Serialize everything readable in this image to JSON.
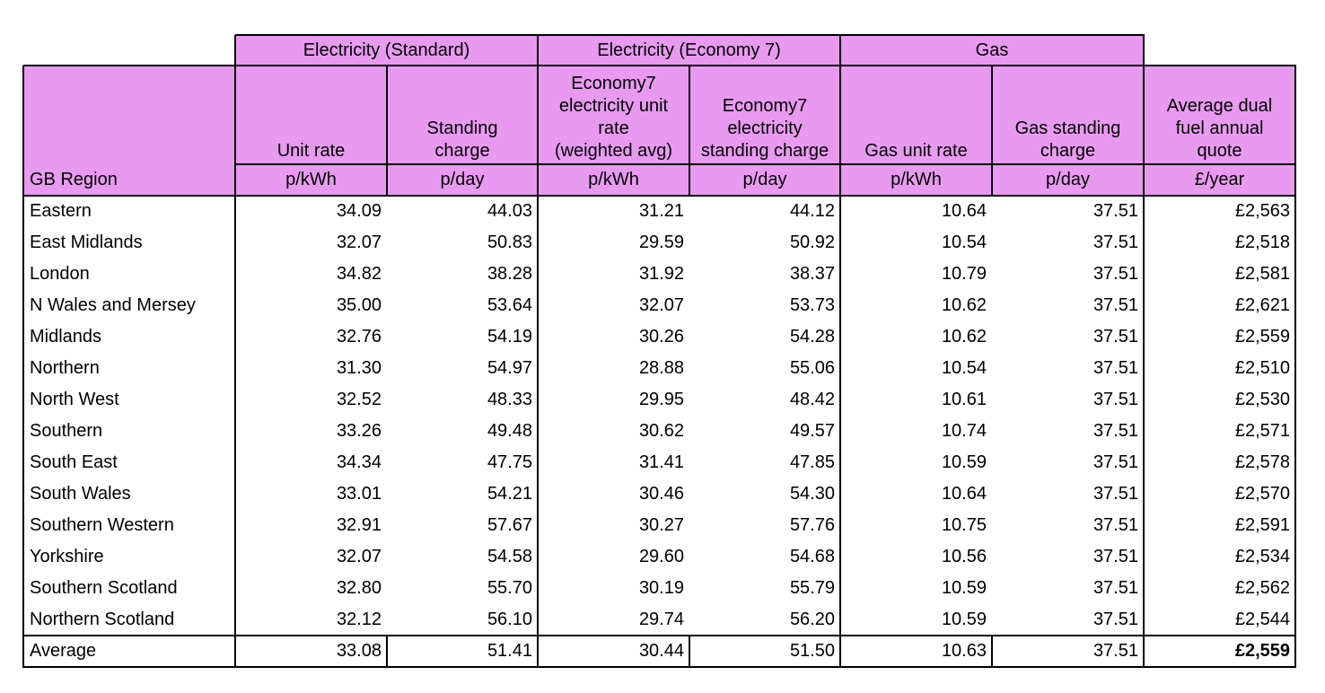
{
  "colors": {
    "header_fill": "#e89af0",
    "grid": "#000000"
  },
  "group_headers": [
    "Electricity (Standard)",
    "Electricity (Economy 7)",
    "Gas"
  ],
  "column_headers": [
    [],
    [
      "Unit rate"
    ],
    [
      "Standing",
      "charge"
    ],
    [
      "Economy7",
      "electricity unit",
      "rate",
      "(weighted avg)"
    ],
    [
      "Economy7",
      "electricity",
      "standing charge"
    ],
    [
      "Gas unit rate"
    ],
    [
      "Gas standing",
      "charge"
    ],
    [
      "Average dual",
      "fuel annual",
      "quote"
    ]
  ],
  "units": [
    "GB Region",
    "p/kWh",
    "p/day",
    "p/kWh",
    "p/day",
    "p/kWh",
    "p/day",
    "£/year"
  ],
  "rows": [
    [
      "Eastern",
      "34.09",
      "44.03",
      "31.21",
      "44.12",
      "10.64",
      "37.51",
      "£2,563"
    ],
    [
      "East Midlands",
      "32.07",
      "50.83",
      "29.59",
      "50.92",
      "10.54",
      "37.51",
      "£2,518"
    ],
    [
      "London",
      "34.82",
      "38.28",
      "31.92",
      "38.37",
      "10.79",
      "37.51",
      "£2,581"
    ],
    [
      "N Wales and Mersey",
      "35.00",
      "53.64",
      "32.07",
      "53.73",
      "10.62",
      "37.51",
      "£2,621"
    ],
    [
      "Midlands",
      "32.76",
      "54.19",
      "30.26",
      "54.28",
      "10.62",
      "37.51",
      "£2,559"
    ],
    [
      "Northern",
      "31.30",
      "54.97",
      "28.88",
      "55.06",
      "10.54",
      "37.51",
      "£2,510"
    ],
    [
      "North West",
      "32.52",
      "48.33",
      "29.95",
      "48.42",
      "10.61",
      "37.51",
      "£2,530"
    ],
    [
      "Southern",
      "33.26",
      "49.48",
      "30.62",
      "49.57",
      "10.74",
      "37.51",
      "£2,571"
    ],
    [
      "South East",
      "34.34",
      "47.75",
      "31.41",
      "47.85",
      "10.59",
      "37.51",
      "£2,578"
    ],
    [
      "South Wales",
      "33.01",
      "54.21",
      "30.46",
      "54.30",
      "10.64",
      "37.51",
      "£2,570"
    ],
    [
      "Southern Western",
      "32.91",
      "57.67",
      "30.27",
      "57.76",
      "10.75",
      "37.51",
      "£2,591"
    ],
    [
      "Yorkshire",
      "32.07",
      "54.58",
      "29.60",
      "54.68",
      "10.56",
      "37.51",
      "£2,534"
    ],
    [
      "Southern Scotland",
      "32.80",
      "55.70",
      "30.19",
      "55.79",
      "10.59",
      "37.51",
      "£2,562"
    ],
    [
      "Northern Scotland",
      "32.12",
      "56.10",
      "29.74",
      "56.20",
      "10.59",
      "37.51",
      "£2,544"
    ]
  ],
  "average": [
    "Average",
    "33.08",
    "51.41",
    "30.44",
    "51.50",
    "10.63",
    "37.51",
    "£2,559"
  ]
}
